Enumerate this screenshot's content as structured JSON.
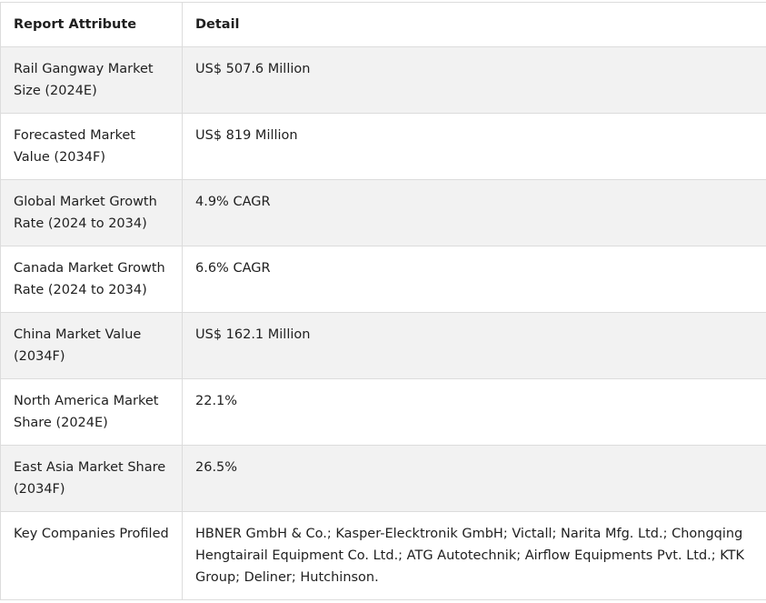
{
  "table": {
    "headers": [
      "Report Attribute",
      "Detail"
    ],
    "rows": [
      {
        "attribute": "Rail Gangway Market Size (2024E)",
        "detail": "US$ 507.6 Million"
      },
      {
        "attribute": "Forecasted Market Value (2034F)",
        "detail": "US$ 819 Million"
      },
      {
        "attribute": "Global Market Growth Rate (2024 to 2034)",
        "detail": "4.9% CAGR"
      },
      {
        "attribute": "Canada Market Growth Rate (2024 to 2034)",
        "detail": "6.6% CAGR"
      },
      {
        "attribute": "China Market Value (2034F)",
        "detail": "US$ 162.1 Million"
      },
      {
        "attribute": "North America Market Share (2024E)",
        "detail": "22.1%"
      },
      {
        "attribute": "East Asia Market Share (2034F)",
        "detail": "26.5%"
      },
      {
        "attribute": "Key Companies Profiled",
        "detail": "HBNER GmbH & Co.; Kasper-Elecktronik GmbH; Victall; Narita Mfg. Ltd.; Chongqing Hengtairail Equipment Co. Ltd.; ATG Autotechnik; Airflow Equipments Pvt. Ltd.; KTK Group; Deliner; Hutchinson."
      }
    ]
  }
}
